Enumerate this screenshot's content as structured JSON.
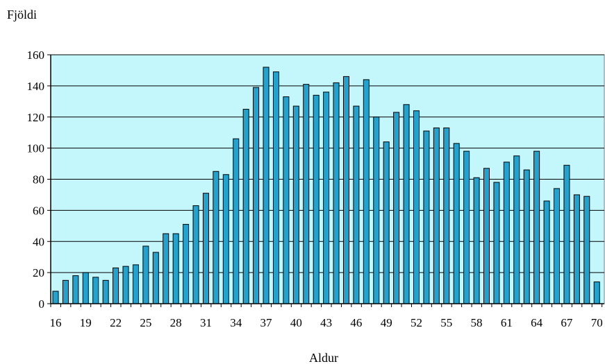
{
  "chart_data": {
    "type": "bar",
    "title": "",
    "ylabel": "Fjöldi",
    "xlabel": "Aldur",
    "x": [
      16,
      17,
      18,
      19,
      20,
      21,
      22,
      23,
      24,
      25,
      26,
      27,
      28,
      29,
      30,
      31,
      32,
      33,
      34,
      35,
      36,
      37,
      38,
      39,
      40,
      41,
      42,
      43,
      44,
      45,
      46,
      47,
      48,
      49,
      50,
      51,
      52,
      53,
      54,
      55,
      56,
      57,
      58,
      59,
      60,
      61,
      62,
      63,
      64,
      65,
      66,
      67,
      68,
      69,
      70
    ],
    "values": [
      8,
      15,
      18,
      20,
      17,
      15,
      23,
      24,
      25,
      37,
      33,
      45,
      45,
      51,
      63,
      71,
      85,
      83,
      106,
      125,
      139,
      152,
      149,
      133,
      127,
      141,
      134,
      136,
      142,
      146,
      127,
      144,
      120,
      104,
      123,
      128,
      124,
      111,
      113,
      113,
      103,
      98,
      81,
      87,
      78,
      91,
      95,
      86,
      98,
      66,
      74,
      89,
      70,
      69,
      14
    ],
    "xticks": [
      "16",
      "19",
      "22",
      "25",
      "28",
      "31",
      "34",
      "37",
      "40",
      "43",
      "46",
      "49",
      "52",
      "55",
      "58",
      "61",
      "64",
      "67",
      "70"
    ],
    "yticks": [
      "0",
      "20",
      "40",
      "60",
      "80",
      "100",
      "120",
      "140",
      "160"
    ],
    "ylim": [
      0,
      160
    ],
    "grid": true,
    "colors": {
      "plot_background": "#c4f7fc",
      "bar_fill": "#22a3cf",
      "bar_stroke": "#000000",
      "gridline": "#000000"
    }
  }
}
